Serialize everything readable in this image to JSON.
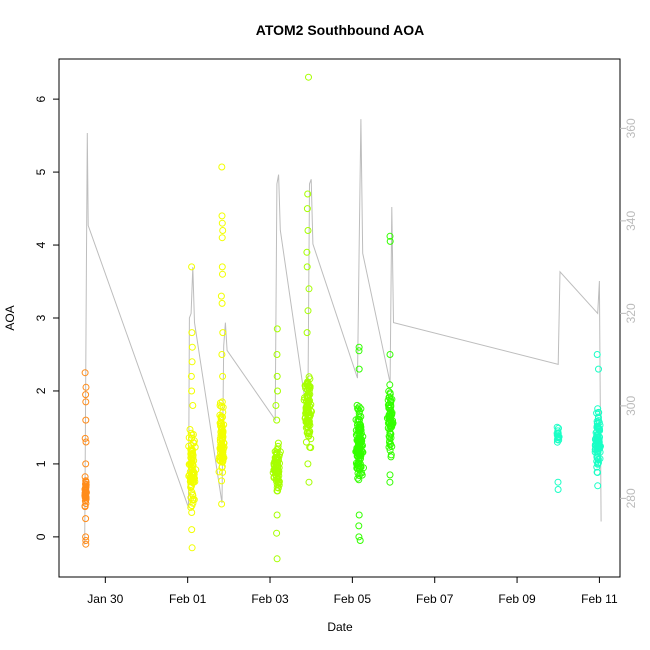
{
  "chart_data": {
    "type": "scatter",
    "title": "ATOM2 Southbound AOA",
    "xlabel": "Date",
    "ylabel": "AOA",
    "xlim": [
      "2026-01-28 21:00",
      "2026-02-11 12:00"
    ],
    "ylim": [
      -0.55,
      6.55
    ],
    "y2lim": [
      263,
      375
    ],
    "grid": false,
    "x_ticks": [
      {
        "label": "Jan 30",
        "date": "2026-01-30"
      },
      {
        "label": "Feb 01",
        "date": "2026-02-01"
      },
      {
        "label": "Feb 03",
        "date": "2026-02-03"
      },
      {
        "label": "Feb 05",
        "date": "2026-02-05"
      },
      {
        "label": "Feb 07",
        "date": "2026-02-07"
      },
      {
        "label": "Feb 09",
        "date": "2026-02-09"
      },
      {
        "label": "Feb 11",
        "date": "2026-02-11"
      }
    ],
    "y_ticks": [
      0,
      1,
      2,
      3,
      4,
      5,
      6
    ],
    "y2_ticks": [
      280,
      300,
      320,
      340,
      360
    ],
    "series": [
      {
        "color": "#ff8c1a",
        "clusters": [
          {
            "center": "2026-01-29 12:30",
            "spread_h": 1.0,
            "n": 38,
            "main": [
              0.3,
              0.9
            ],
            "outliers": [
              -0.1,
              -0.05,
              0.0,
              0.25,
              1.0,
              1.3,
              1.35,
              1.6,
              1.85,
              1.95,
              2.05,
              2.25
            ]
          }
        ]
      },
      {
        "color": "#f2ff00",
        "clusters": [
          {
            "center": "2026-02-01 02:30",
            "spread_h": 2.5,
            "n": 90,
            "main": [
              0.3,
              1.6
            ],
            "outliers": [
              -0.15,
              0.1,
              1.8,
              2.0,
              2.2,
              2.4,
              2.6,
              2.8,
              3.7
            ]
          },
          {
            "center": "2026-02-01 20:00",
            "spread_h": 2.0,
            "n": 90,
            "main": [
              0.6,
              2.0
            ],
            "outliers": [
              0.45,
              2.2,
              2.5,
              2.8,
              3.2,
              3.3,
              3.6,
              3.7,
              4.1,
              4.2,
              4.3,
              4.4,
              5.07
            ]
          }
        ]
      },
      {
        "color": "#a6ff00",
        "clusters": [
          {
            "center": "2026-02-03 04:00",
            "spread_h": 2.5,
            "n": 80,
            "main": [
              0.5,
              1.4
            ],
            "outliers": [
              -0.3,
              0.05,
              0.3,
              1.6,
              1.8,
              2.0,
              2.2,
              2.5,
              2.85
            ]
          },
          {
            "center": "2026-02-03 22:00",
            "spread_h": 2.5,
            "n": 110,
            "main": [
              1.1,
              2.4
            ],
            "outliers": [
              0.75,
              1.0,
              2.8,
              3.1,
              3.4,
              3.7,
              3.9,
              4.2,
              4.5,
              4.7,
              6.3
            ]
          }
        ]
      },
      {
        "color": "#33ff00",
        "clusters": [
          {
            "center": "2026-02-05 04:00",
            "spread_h": 3.0,
            "n": 120,
            "main": [
              0.5,
              2.0
            ],
            "outliers": [
              -0.05,
              0.0,
              0.15,
              0.3,
              2.3,
              2.55,
              2.6
            ]
          },
          {
            "center": "2026-02-05 22:00",
            "spread_h": 2.0,
            "n": 70,
            "main": [
              1.0,
              2.2
            ],
            "outliers": [
              0.75,
              0.85,
              2.5,
              4.05,
              4.12
            ]
          }
        ]
      },
      {
        "color": "#00ff73",
        "clusters": []
      },
      {
        "color": "#1affc6",
        "clusters": [
          {
            "center": "2026-02-10 00:00",
            "spread_h": 1.0,
            "n": 14,
            "main": [
              1.2,
              1.6
            ],
            "outliers": [
              0.65,
              0.75
            ]
          },
          {
            "center": "2026-02-10 23:00",
            "spread_h": 2.0,
            "n": 90,
            "main": [
              0.8,
              1.9
            ],
            "outliers": [
              0.7,
              2.3,
              2.5
            ]
          }
        ]
      }
    ],
    "line_series": {
      "axis": "right",
      "color": "#bdbdbd",
      "points": [
        [
          "2026-01-29 12:00",
          270
        ],
        [
          "2026-01-29 13:00",
          330
        ],
        [
          "2026-01-29 13:30",
          359
        ],
        [
          "2026-01-29 14:00",
          339
        ],
        [
          "2026-02-01 00:30",
          278
        ],
        [
          "2026-02-01 01:00",
          319
        ],
        [
          "2026-02-01 02:00",
          320
        ],
        [
          "2026-02-01 03:00",
          330
        ],
        [
          "2026-02-01 04:00",
          318
        ],
        [
          "2026-02-01 20:00",
          279
        ],
        [
          "2026-02-01 21:00",
          313
        ],
        [
          "2026-02-01 22:00",
          318
        ],
        [
          "2026-02-01 23:00",
          312
        ],
        [
          "2026-02-03 03:00",
          297
        ],
        [
          "2026-02-03 04:00",
          348
        ],
        [
          "2026-02-03 05:00",
          350
        ],
        [
          "2026-02-03 06:00",
          338
        ],
        [
          "2026-02-03 22:00",
          297
        ],
        [
          "2026-02-03 23:00",
          348
        ],
        [
          "2026-02-04 00:00",
          349
        ],
        [
          "2026-02-04 01:00",
          335
        ],
        [
          "2026-02-05 03:00",
          306
        ],
        [
          "2026-02-05 04:00",
          335
        ],
        [
          "2026-02-05 05:00",
          362
        ],
        [
          "2026-02-05 06:00",
          333
        ],
        [
          "2026-02-05 22:00",
          305
        ],
        [
          "2026-02-05 23:00",
          343
        ],
        [
          "2026-02-06 00:00",
          318
        ],
        [
          "2026-02-10 00:00",
          309
        ],
        [
          "2026-02-10 01:00",
          329
        ],
        [
          "2026-02-10 23:00",
          320
        ],
        [
          "2026-02-11 00:00",
          327
        ],
        [
          "2026-02-11 01:00",
          275
        ]
      ]
    }
  }
}
